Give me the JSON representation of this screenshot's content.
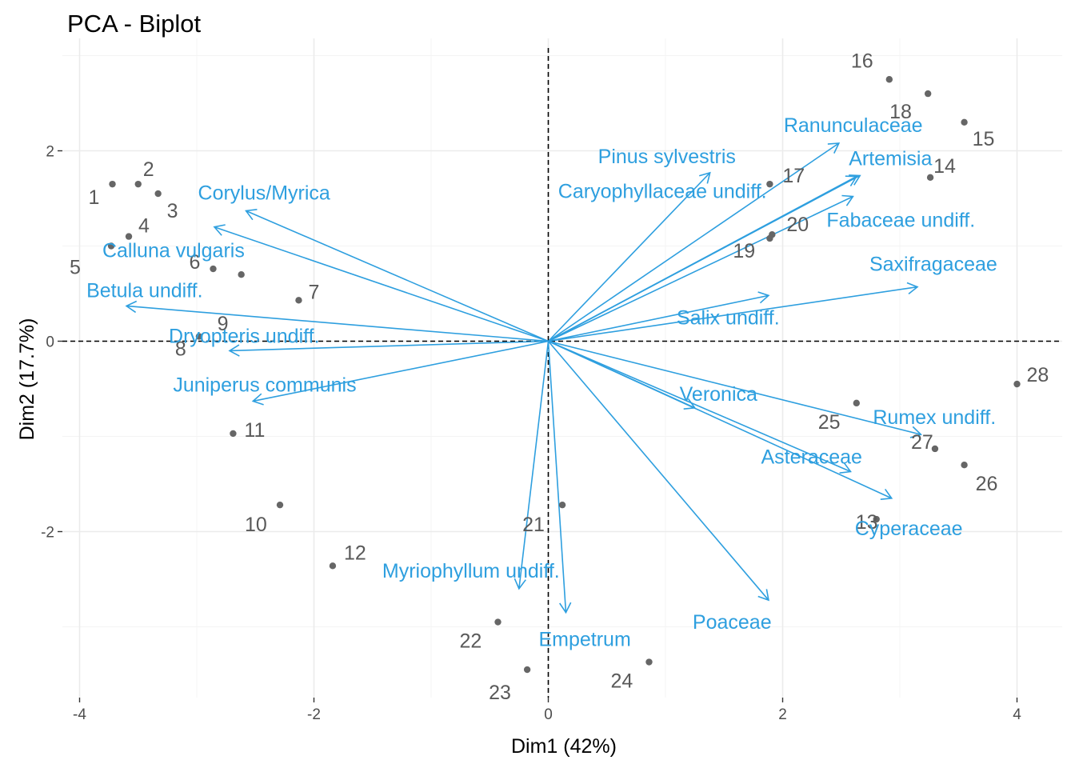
{
  "chart_data": {
    "type": "scatter",
    "title": "PCA - Biplot",
    "xlabel": "Dim1 (42%)",
    "ylabel": "Dim2 (17.7%)",
    "xlim": [
      -4.2,
      4.35
    ],
    "ylim": [
      -3.75,
      3.1
    ],
    "xticks": [
      -4,
      -2,
      0,
      2,
      4
    ],
    "yticks": [
      -2,
      0,
      2
    ],
    "grid": true,
    "colors": {
      "individuals": "#666666",
      "individual_labels": "#595959",
      "variables": "#2E9FDF",
      "grid": "#ebebeb",
      "axis_lines": "#000000"
    },
    "individuals": [
      {
        "label": "1",
        "x": -3.72,
        "y": 1.65
      },
      {
        "label": "2",
        "x": -3.5,
        "y": 1.65
      },
      {
        "label": "3",
        "x": -3.33,
        "y": 1.55
      },
      {
        "label": "4",
        "x": -3.58,
        "y": 1.1
      },
      {
        "label": "5",
        "x": -3.73,
        "y": 1.0
      },
      {
        "label": "6",
        "x": -2.86,
        "y": 0.76
      },
      {
        "label": "7",
        "x": -2.13,
        "y": 0.43
      },
      {
        "label": "8",
        "x": -2.98,
        "y": 0.05
      },
      {
        "label": "9",
        "x": -2.62,
        "y": 0.7
      },
      {
        "label": "10",
        "x": -2.29,
        "y": -1.72
      },
      {
        "label": "11",
        "x": -2.69,
        "y": -0.97
      },
      {
        "label": "12",
        "x": -1.84,
        "y": -2.36
      },
      {
        "label": "13",
        "x": 2.8,
        "y": -1.87
      },
      {
        "label": "14",
        "x": 3.26,
        "y": 1.72
      },
      {
        "label": "15",
        "x": 3.55,
        "y": 2.3
      },
      {
        "label": "16",
        "x": 2.91,
        "y": 2.75
      },
      {
        "label": "17",
        "x": 1.89,
        "y": 1.65
      },
      {
        "label": "18",
        "x": 3.24,
        "y": 2.6
      },
      {
        "label": "19",
        "x": 1.89,
        "y": 1.08
      },
      {
        "label": "20",
        "x": 1.91,
        "y": 1.12
      },
      {
        "label": "21",
        "x": 0.12,
        "y": -1.72
      },
      {
        "label": "22",
        "x": -0.43,
        "y": -2.95
      },
      {
        "label": "23",
        "x": -0.18,
        "y": -3.45
      },
      {
        "label": "24",
        "x": 0.86,
        "y": -3.37
      },
      {
        "label": "25",
        "x": 2.63,
        "y": -0.65
      },
      {
        "label": "26",
        "x": 3.55,
        "y": -1.3
      },
      {
        "label": "27",
        "x": 3.3,
        "y": -1.13
      },
      {
        "label": "28",
        "x": 4.0,
        "y": -0.45
      }
    ],
    "variables": [
      {
        "label": "Corylus/Myrica",
        "x": -2.58,
        "y": 1.37
      },
      {
        "label": "Calluna vulgaris",
        "x": -2.85,
        "y": 1.2
      },
      {
        "label": "Betula undiff.",
        "x": -3.6,
        "y": 0.37
      },
      {
        "label": "Dryopteris undiff.",
        "x": -2.72,
        "y": -0.1
      },
      {
        "label": "Juniperus communis",
        "x": -2.52,
        "y": -0.63
      },
      {
        "label": "Pinus sylvestris",
        "x": 1.38,
        "y": 1.77
      },
      {
        "label": "Caryophyllaceae undiff.",
        "x": 2.63,
        "y": 1.73
      },
      {
        "label": "Ranunculaceae",
        "x": 2.48,
        "y": 2.08
      },
      {
        "label": "Artemisia",
        "x": 2.66,
        "y": 1.74
      },
      {
        "label": "Fabaceae undiff.",
        "x": 2.6,
        "y": 1.52
      },
      {
        "label": "Saxifragaceae",
        "x": 3.15,
        "y": 0.57
      },
      {
        "label": "Salix undiff.",
        "x": 1.88,
        "y": 0.48
      },
      {
        "label": "Veronica",
        "x": 1.25,
        "y": -0.7
      },
      {
        "label": "Rumex undiff.",
        "x": 3.18,
        "y": -0.98
      },
      {
        "label": "Asteraceae",
        "x": 2.58,
        "y": -1.37
      },
      {
        "label": "Cyperaceae",
        "x": 2.93,
        "y": -1.65
      },
      {
        "label": "Poaceae",
        "x": 1.88,
        "y": -2.72
      },
      {
        "label": "Myriophyllum undiff.",
        "x": -0.25,
        "y": -2.6
      },
      {
        "label": "Empetrum",
        "x": 0.15,
        "y": -2.85
      }
    ]
  }
}
